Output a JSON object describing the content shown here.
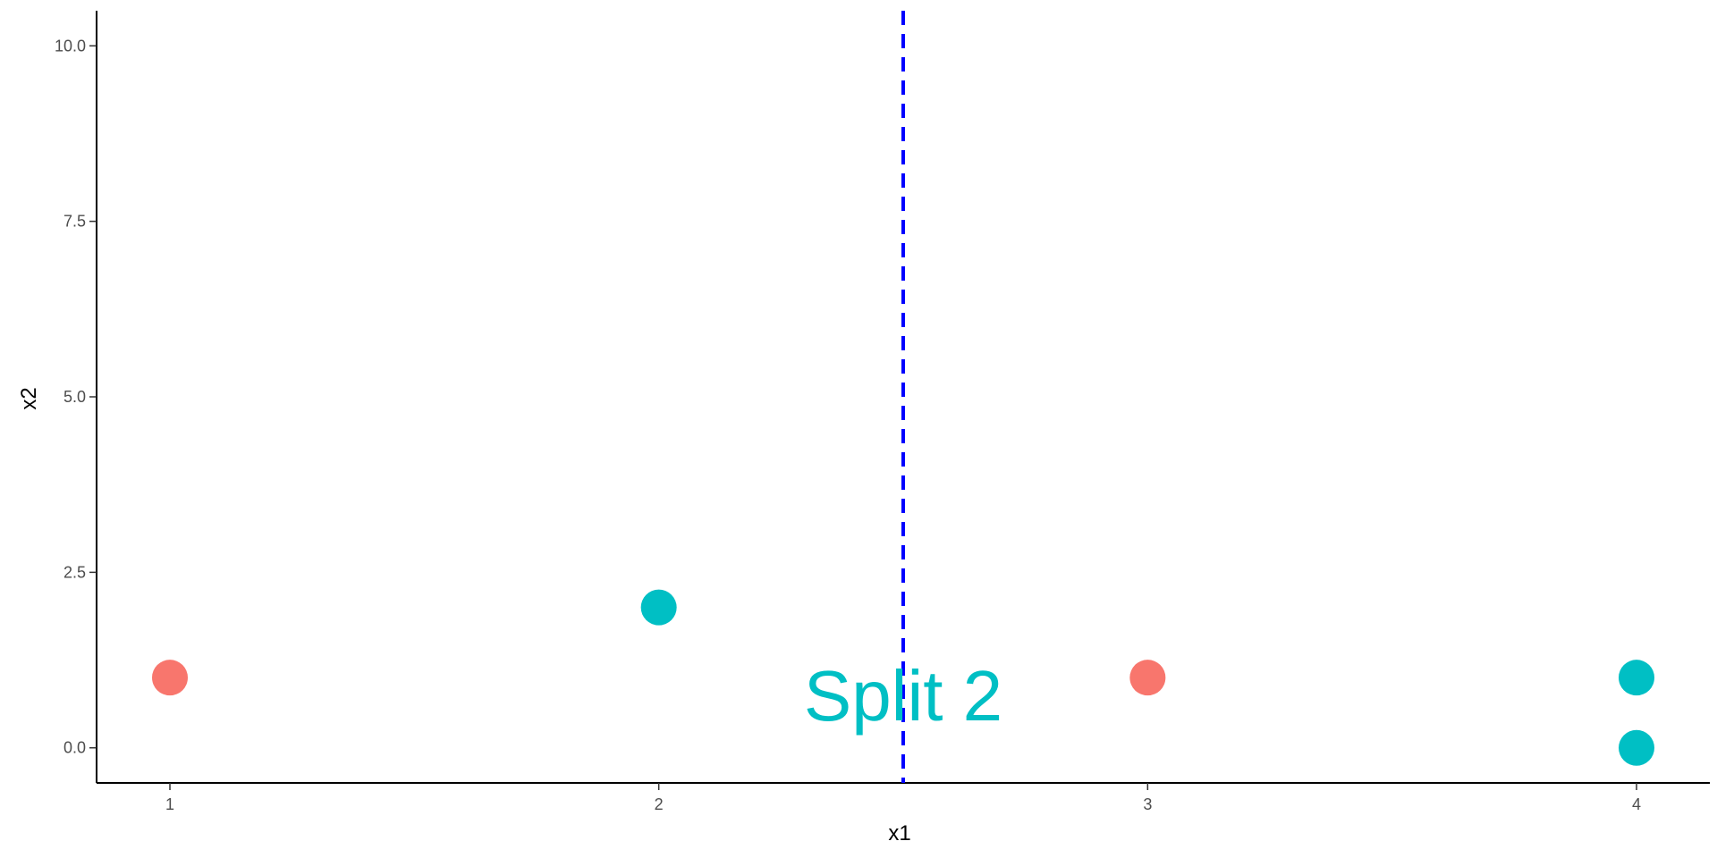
{
  "chart_data": {
    "type": "scatter",
    "title": "",
    "xlabel": "x1",
    "ylabel": "x2",
    "xlim": [
      0.85,
      4.15
    ],
    "ylim": [
      -0.5,
      10.5
    ],
    "x_ticks": [
      1,
      2,
      3,
      4
    ],
    "x_tick_labels": [
      "1",
      "2",
      "3",
      "4"
    ],
    "y_ticks": [
      0,
      2.5,
      5,
      7.5,
      10
    ],
    "y_tick_labels": [
      "0.0",
      "2.5",
      "5.0",
      "7.5",
      "10.0"
    ],
    "grid": false,
    "legend": "none",
    "points": [
      {
        "x": 1,
        "y": 1,
        "color": "#F8766D"
      },
      {
        "x": 2,
        "y": 2,
        "color": "#00BFC4"
      },
      {
        "x": 3,
        "y": 1,
        "color": "#F8766D"
      },
      {
        "x": 4,
        "y": 1,
        "color": "#00BFC4"
      },
      {
        "x": 4,
        "y": 0,
        "color": "#00BFC4"
      }
    ],
    "vline": {
      "x": 2.5,
      "color": "#0000FF",
      "style": "dashed"
    },
    "annotation": {
      "text": "Split 2",
      "x": 2.5,
      "y": 0.75,
      "color": "#00BFC4"
    }
  }
}
